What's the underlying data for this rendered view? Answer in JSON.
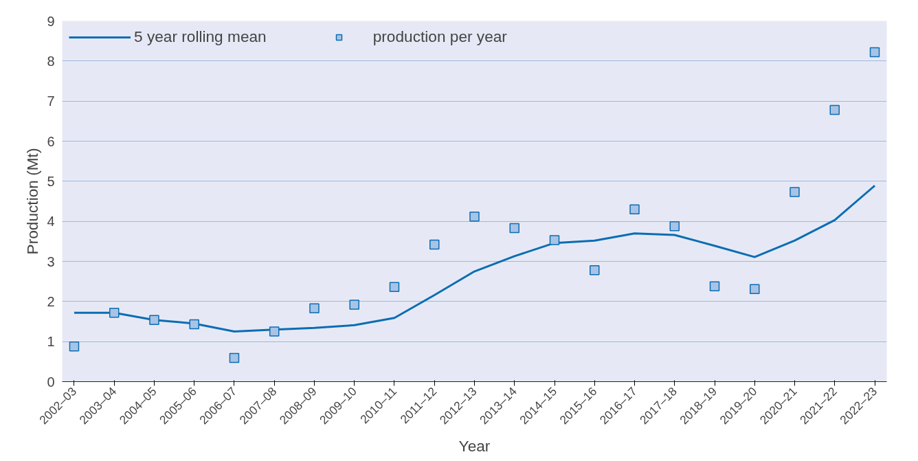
{
  "chart_data": {
    "type": "line",
    "xlabel": "Year",
    "ylabel": "Production (Mt)",
    "categories": [
      "2002–03",
      "2003–04",
      "2004–05",
      "2005–06",
      "2006–07",
      "2007–08",
      "2008–09",
      "2009–10",
      "2010–11",
      "2011–12",
      "2012–13",
      "2013–14",
      "2014–15",
      "2015–16",
      "2016–17",
      "2017–18",
      "2018–19",
      "2019–20",
      "2020–21",
      "2021–22",
      "2022–23"
    ],
    "series": [
      {
        "name": "5 year rolling mean",
        "color": "#0b6db3",
        "line_style": "solid",
        "marker": "none",
        "values": [
          1.72,
          1.72,
          1.54,
          1.45,
          1.25,
          1.3,
          1.34,
          1.41,
          1.59,
          2.16,
          2.75,
          3.13,
          3.46,
          3.52,
          3.7,
          3.66,
          3.39,
          3.11,
          3.52,
          4.03,
          4.89
        ]
      },
      {
        "name": "production per year",
        "type": "scatter",
        "color": "#a8c3e5",
        "marker": "square",
        "values": [
          0.88,
          1.72,
          1.54,
          1.43,
          0.59,
          1.25,
          1.83,
          1.92,
          2.36,
          3.42,
          4.12,
          3.83,
          3.53,
          2.78,
          4.3,
          3.88,
          2.38,
          2.31,
          4.73,
          6.78,
          8.22
        ]
      }
    ],
    "ylim": [
      0,
      9
    ],
    "yticks": [
      0,
      1,
      2,
      3,
      4,
      5,
      6,
      7,
      8,
      9
    ],
    "grid": "y",
    "legend": "top left"
  }
}
